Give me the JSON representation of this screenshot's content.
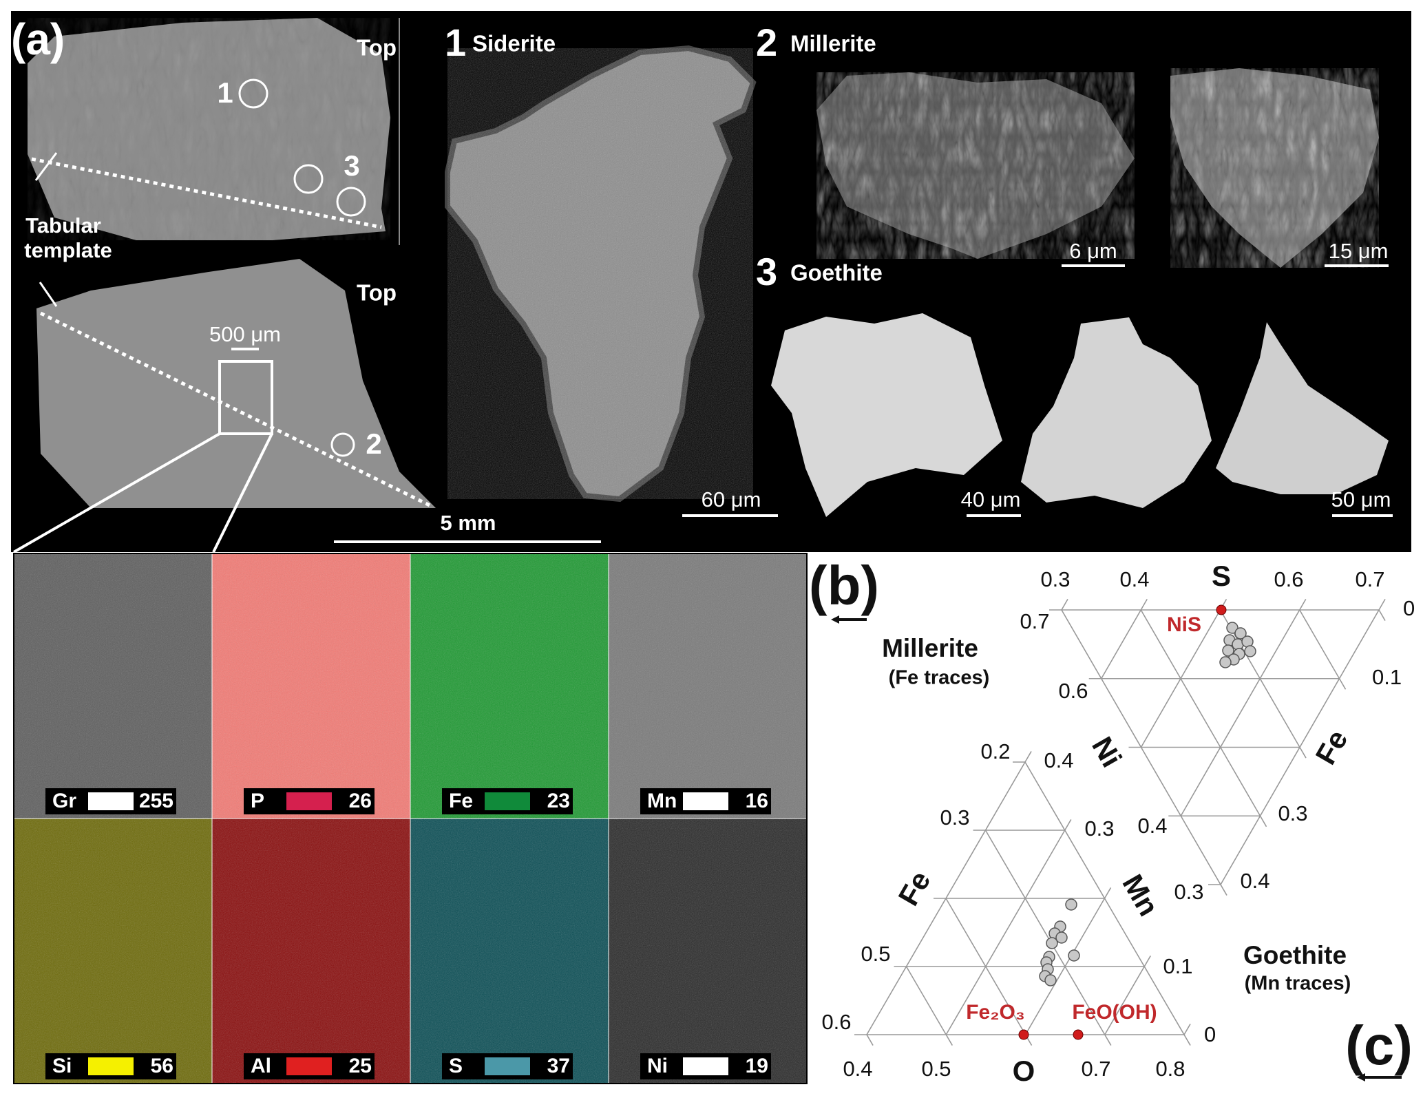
{
  "panel_a": {
    "label": "(a)",
    "sample": {
      "top_labels": [
        "Top",
        "Top"
      ],
      "sites": [
        "1",
        "3",
        "2"
      ],
      "template_label": [
        "Tabular",
        "template"
      ],
      "scale_inset": "500 μm",
      "scale_main": "5 mm"
    },
    "siderite": {
      "number": "1",
      "name": "Siderite",
      "scale": "60 μm"
    },
    "millerite": {
      "number": "2",
      "name": "Millerite",
      "scales": [
        "6 μm",
        "15 μm"
      ]
    },
    "goethite": {
      "number": "3",
      "name": "Goethite",
      "scales": [
        "40 μm",
        "50 μm"
      ]
    },
    "maps": [
      {
        "element": "Gr",
        "value": 255,
        "color": "#ffffff"
      },
      {
        "element": "P",
        "value": 26,
        "color": "#d5204e"
      },
      {
        "element": "Fe",
        "value": 23,
        "color": "#108a3a"
      },
      {
        "element": "Mn",
        "value": 16,
        "color": "#ffffff"
      },
      {
        "element": "Si",
        "value": 56,
        "color": "#f5f000"
      },
      {
        "element": "Al",
        "value": 25,
        "color": "#e02020"
      },
      {
        "element": "S",
        "value": 37,
        "color": "#4b98a8"
      },
      {
        "element": "Ni",
        "value": 19,
        "color": "#ffffff"
      }
    ]
  },
  "panel_b": {
    "label": "(b)",
    "title": "Millerite",
    "subtitle": "(Fe traces)",
    "top_axis": "S",
    "left_axis": "Ni",
    "right_axis": "Fe",
    "top_ticks": [
      0.3,
      0.4,
      0.6,
      0.7
    ],
    "left_ticks": [
      0.7,
      0.6,
      0.4,
      0.3
    ],
    "right_ticks": [
      0,
      0.1,
      0.3,
      0.4
    ],
    "reference": "NiS"
  },
  "panel_c": {
    "label": "(c)",
    "title": "Goethite",
    "subtitle": "(Mn traces)",
    "bottom_axis": "O",
    "left_axis": "Fe",
    "right_axis": "Mn",
    "bottom_ticks": [
      0.4,
      0.5,
      0.7,
      0.8
    ],
    "left_ticks": [
      0.6,
      0.5,
      0.3,
      0.2
    ],
    "right_ticks": [
      0,
      0.1,
      0.3,
      0.4
    ],
    "references": [
      "Fe₂O₃",
      "FeO(OH)"
    ]
  }
}
